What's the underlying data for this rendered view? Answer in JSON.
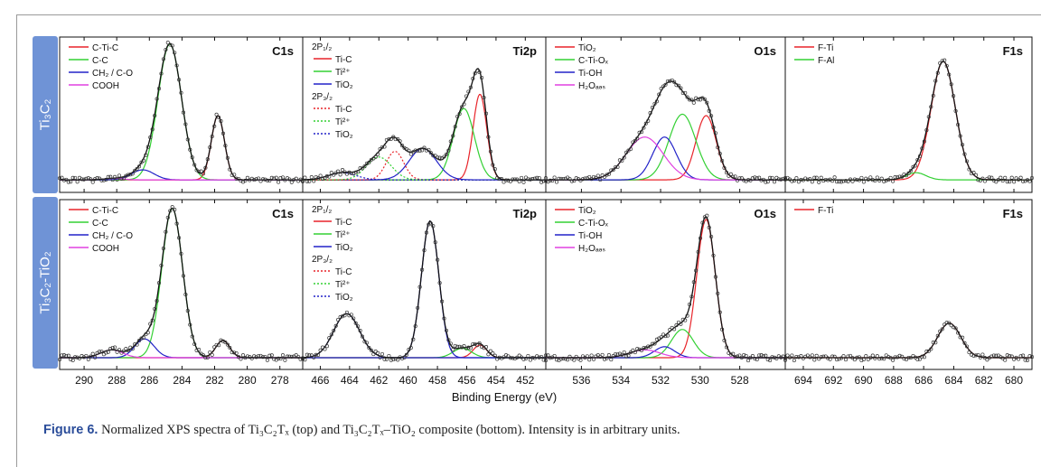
{
  "row_labels": [
    "Ti₃C₂",
    "Ti₃C₂-TiO₂"
  ],
  "xlabel": "Binding Energy (eV)",
  "caption": {
    "label": "Figure 6.",
    "text": "Normalized XPS spectra of Ti₃C₂Tₓ (top) and Ti₃C₂Tₓ–TiO₂ composite (bottom). Intensity is in arbitrary units."
  },
  "colors": {
    "red": "#e8242a",
    "green": "#33d033",
    "blue": "#2222c8",
    "magenta": "#e040e0",
    "envelope": "#111111"
  },
  "chart_data": [
    {
      "type": "line",
      "title": "C1s",
      "row": 0,
      "x_ticks": [
        290,
        288,
        286,
        284,
        282,
        280,
        278
      ],
      "xlim": [
        291.5,
        276.6
      ],
      "legend": [
        {
          "label": "C-Ti-C",
          "color": "red"
        },
        {
          "label": "C-C",
          "color": "green"
        },
        {
          "label": "CH₂ / C-O",
          "color": "blue"
        },
        {
          "label": "COOH",
          "color": "magenta"
        }
      ],
      "baseline": 0.05,
      "peaks": [
        {
          "name": "C-Ti-C",
          "color": "red",
          "center": 281.8,
          "height": 0.45,
          "fwhm": 0.95
        },
        {
          "name": "C-C",
          "color": "green",
          "center": 284.75,
          "height": 0.95,
          "fwhm": 1.7
        },
        {
          "name": "CH₂ / C-O",
          "color": "blue",
          "center": 286.4,
          "height": 0.07,
          "fwhm": 1.6
        },
        {
          "name": "COOH",
          "color": "magenta",
          "center": 288.2,
          "height": 0.01,
          "fwhm": 1.4
        }
      ]
    },
    {
      "type": "line",
      "title": "Ti2p",
      "row": 0,
      "x_ticks": [
        466,
        464,
        462,
        460,
        458,
        456,
        454,
        452
      ],
      "xlim": [
        467.2,
        450.6
      ],
      "legend_groups": [
        {
          "header": "2P₁/₂",
          "style": "solid",
          "items": [
            {
              "label": "Ti-C",
              "color": "red"
            },
            {
              "label": "Ti²⁺",
              "color": "green"
            },
            {
              "label": "TiO₂",
              "color": "blue"
            }
          ]
        },
        {
          "header": "2P₃/₂",
          "style": "dotted",
          "items": [
            {
              "label": "Ti-C",
              "color": "red"
            },
            {
              "label": "Ti²⁺",
              "color": "green"
            },
            {
              "label": "TiO₂",
              "color": "blue"
            }
          ]
        }
      ],
      "baseline": 0.05,
      "peaks": [
        {
          "name": "Ti-C",
          "color": "red",
          "center": 455.1,
          "height": 0.6,
          "fwhm": 1.1
        },
        {
          "name": "Ti²⁺",
          "color": "green",
          "center": 456.2,
          "height": 0.5,
          "fwhm": 1.7
        },
        {
          "name": "TiO₂",
          "color": "blue",
          "center": 459.0,
          "height": 0.22,
          "fwhm": 2.2
        },
        {
          "name": "Ti-C",
          "color": "red",
          "center": 460.9,
          "height": 0.2,
          "fwhm": 1.4,
          "dotted": true
        },
        {
          "name": "Ti²⁺",
          "color": "green",
          "center": 462.0,
          "height": 0.16,
          "fwhm": 2.0,
          "dotted": true
        },
        {
          "name": "TiO₂",
          "color": "blue",
          "center": 464.5,
          "height": 0.05,
          "fwhm": 2.2,
          "dotted": true
        }
      ]
    },
    {
      "type": "line",
      "title": "O1s",
      "row": 0,
      "x_ticks": [
        536,
        534,
        532,
        530,
        528
      ],
      "xlim": [
        537.8,
        525.7
      ],
      "legend": [
        {
          "label": "TiO₂",
          "color": "red"
        },
        {
          "label": "C-Ti-Oₓ",
          "color": "green"
        },
        {
          "label": "Ti-OH",
          "color": "blue"
        },
        {
          "label": "H₂Oₐₔₛ",
          "color": "magenta"
        }
      ],
      "baseline": 0.05,
      "peaks": [
        {
          "name": "TiO₂",
          "color": "red",
          "center": 529.7,
          "height": 0.45,
          "fwhm": 1.2
        },
        {
          "name": "C-Ti-Oₓ",
          "color": "green",
          "center": 530.9,
          "height": 0.46,
          "fwhm": 1.6
        },
        {
          "name": "Ti-OH",
          "color": "blue",
          "center": 531.8,
          "height": 0.3,
          "fwhm": 1.4
        },
        {
          "name": "H₂Oₐₔₛ",
          "color": "magenta",
          "center": 532.8,
          "height": 0.3,
          "fwhm": 2.2
        }
      ]
    },
    {
      "type": "line",
      "title": "F1s",
      "row": 0,
      "x_ticks": [
        694,
        692,
        690,
        688,
        686,
        684,
        682,
        680
      ],
      "xlim": [
        695.2,
        678.8
      ],
      "legend": [
        {
          "label": "F-Ti",
          "color": "red"
        },
        {
          "label": "F-Al",
          "color": "green"
        }
      ],
      "baseline": 0.05,
      "peaks": [
        {
          "name": "F-Ti",
          "color": "red",
          "center": 684.7,
          "height": 0.83,
          "fwhm": 1.9
        },
        {
          "name": "F-Al",
          "color": "green",
          "center": 686.5,
          "height": 0.05,
          "fwhm": 1.5
        }
      ]
    },
    {
      "type": "line",
      "title": "C1s",
      "row": 1,
      "x_ticks": [
        290,
        288,
        286,
        284,
        282,
        280,
        278
      ],
      "xlim": [
        291.5,
        276.6
      ],
      "legend": [
        {
          "label": "C-Ti-C",
          "color": "red"
        },
        {
          "label": "C-C",
          "color": "green"
        },
        {
          "label": "CH₂ / C-O",
          "color": "blue"
        },
        {
          "label": "COOH",
          "color": "magenta"
        }
      ],
      "baseline": 0.04,
      "peaks": [
        {
          "name": "C-Ti-C",
          "color": "red",
          "center": 281.5,
          "height": 0.11,
          "fwhm": 1.0
        },
        {
          "name": "C-C",
          "color": "green",
          "center": 284.6,
          "height": 0.95,
          "fwhm": 1.5
        },
        {
          "name": "CH₂ / C-O",
          "color": "blue",
          "center": 286.3,
          "height": 0.12,
          "fwhm": 1.4
        },
        {
          "name": "COOH",
          "color": "magenta",
          "center": 288.3,
          "height": 0.05,
          "fwhm": 1.6
        }
      ]
    },
    {
      "type": "line",
      "title": "Ti2p",
      "row": 1,
      "x_ticks": [
        466,
        464,
        462,
        460,
        458,
        456,
        454,
        452
      ],
      "xlim": [
        467.2,
        450.6
      ],
      "legend_groups": [
        {
          "header": "2P₁/₂",
          "style": "solid",
          "items": [
            {
              "label": "Ti-C",
              "color": "red"
            },
            {
              "label": "Ti²⁺",
              "color": "green"
            },
            {
              "label": "TiO₂",
              "color": "blue"
            }
          ]
        },
        {
          "header": "2P₃/₂",
          "style": "dotted",
          "items": [
            {
              "label": "Ti-C",
              "color": "red"
            },
            {
              "label": "Ti²⁺",
              "color": "green"
            },
            {
              "label": "TiO₂",
              "color": "blue"
            }
          ]
        }
      ],
      "baseline": 0.04,
      "peaks": [
        {
          "name": "Ti-C",
          "color": "red",
          "center": 455.1,
          "height": 0.08,
          "fwhm": 1.1
        },
        {
          "name": "Ti²⁺",
          "color": "green",
          "center": 456.3,
          "height": 0.06,
          "fwhm": 1.5
        },
        {
          "name": "TiO₂",
          "color": "blue",
          "center": 458.5,
          "height": 0.87,
          "fwhm": 1.4
        },
        {
          "name": "TiO₂",
          "color": "blue",
          "center": 464.2,
          "height": 0.28,
          "fwhm": 2.1
        }
      ]
    },
    {
      "type": "line",
      "title": "O1s",
      "row": 1,
      "x_ticks": [
        536,
        534,
        532,
        530,
        528
      ],
      "xlim": [
        537.8,
        525.7
      ],
      "legend": [
        {
          "label": "TiO₂",
          "color": "red"
        },
        {
          "label": "C-Ti-Oₓ",
          "color": "green"
        },
        {
          "label": "Ti-OH",
          "color": "blue"
        },
        {
          "label": "H₂Oₐₔₛ",
          "color": "magenta"
        }
      ],
      "baseline": 0.04,
      "peaks": [
        {
          "name": "TiO₂",
          "color": "red",
          "center": 529.7,
          "height": 0.88,
          "fwhm": 1.1
        },
        {
          "name": "C-Ti-Oₓ",
          "color": "green",
          "center": 530.9,
          "height": 0.18,
          "fwhm": 1.3
        },
        {
          "name": "Ti-OH",
          "color": "blue",
          "center": 531.8,
          "height": 0.07,
          "fwhm": 1.2
        },
        {
          "name": "H₂Oₐₔₛ",
          "color": "magenta",
          "center": 532.8,
          "height": 0.05,
          "fwhm": 1.8
        }
      ]
    },
    {
      "type": "line",
      "title": "F1s",
      "row": 1,
      "x_ticks": [
        694,
        692,
        690,
        688,
        686,
        684,
        682,
        680
      ],
      "xlim": [
        695.2,
        678.8
      ],
      "legend": [
        {
          "label": "F-Ti",
          "color": "red"
        }
      ],
      "baseline": 0.04,
      "peaks": [
        {
          "name": "F-Ti",
          "color": "red",
          "center": 684.3,
          "height": 0.22,
          "fwhm": 1.8
        }
      ]
    }
  ]
}
